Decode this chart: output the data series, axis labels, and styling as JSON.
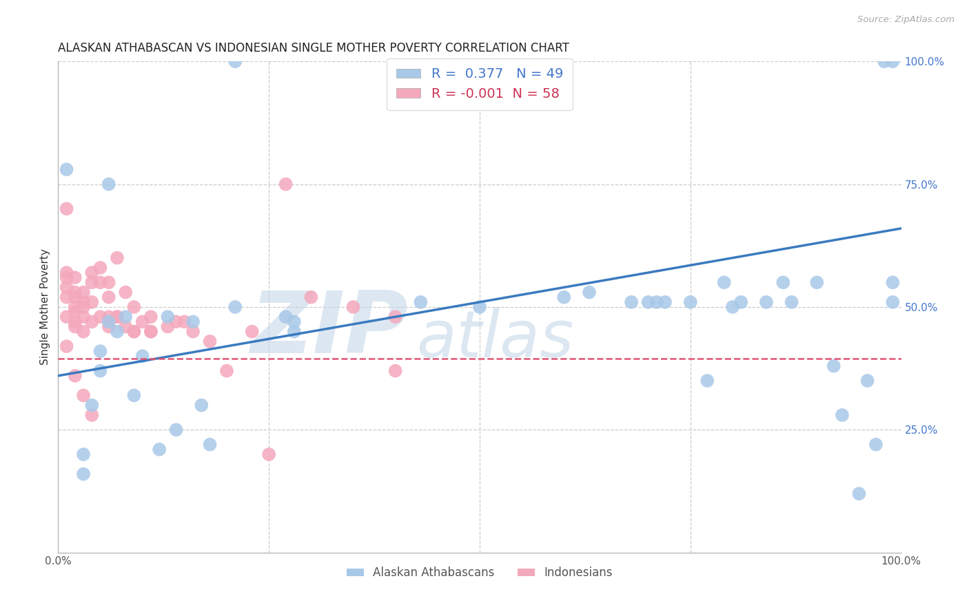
{
  "title": "ALASKAN ATHABASCAN VS INDONESIAN SINGLE MOTHER POVERTY CORRELATION CHART",
  "source": "Source: ZipAtlas.com",
  "ylabel": "Single Mother Poverty",
  "legend_blue_label": "Alaskan Athabascans",
  "legend_pink_label": "Indonesians",
  "blue_R": 0.377,
  "blue_N": 49,
  "pink_R": -0.001,
  "pink_N": 58,
  "blue_color": "#a8c8e8",
  "pink_color": "#f4a8bc",
  "blue_line_color": "#3a7abf",
  "pink_line_color": "#e05575",
  "blue_x": [
    0.21,
    0.01,
    0.04,
    0.05,
    0.06,
    0.07,
    0.08,
    0.09,
    0.1,
    0.12,
    0.13,
    0.14,
    0.16,
    0.17,
    0.18,
    0.21,
    0.27,
    0.28,
    0.28,
    0.43,
    0.5,
    0.6,
    0.63,
    0.68,
    0.7,
    0.71,
    0.72,
    0.75,
    0.77,
    0.79,
    0.8,
    0.81,
    0.84,
    0.86,
    0.87,
    0.9,
    0.92,
    0.93,
    0.95,
    0.96,
    0.97,
    0.98,
    0.99,
    0.99,
    0.99,
    0.03,
    0.03,
    0.05,
    0.06
  ],
  "blue_y": [
    1.0,
    0.78,
    0.3,
    0.41,
    0.47,
    0.45,
    0.48,
    0.32,
    0.4,
    0.21,
    0.48,
    0.25,
    0.47,
    0.3,
    0.22,
    0.5,
    0.48,
    0.47,
    0.45,
    0.51,
    0.5,
    0.52,
    0.53,
    0.51,
    0.51,
    0.51,
    0.51,
    0.51,
    0.35,
    0.55,
    0.5,
    0.51,
    0.51,
    0.55,
    0.51,
    0.55,
    0.38,
    0.28,
    0.12,
    0.35,
    0.22,
    1.0,
    0.51,
    1.0,
    0.55,
    0.2,
    0.16,
    0.37,
    0.75
  ],
  "pink_x": [
    0.01,
    0.01,
    0.01,
    0.01,
    0.01,
    0.01,
    0.02,
    0.02,
    0.02,
    0.02,
    0.02,
    0.02,
    0.02,
    0.03,
    0.03,
    0.03,
    0.03,
    0.03,
    0.04,
    0.04,
    0.04,
    0.04,
    0.05,
    0.05,
    0.05,
    0.06,
    0.06,
    0.06,
    0.07,
    0.07,
    0.08,
    0.08,
    0.09,
    0.09,
    0.1,
    0.11,
    0.11,
    0.13,
    0.14,
    0.15,
    0.16,
    0.18,
    0.2,
    0.23,
    0.27,
    0.3,
    0.35,
    0.01,
    0.02,
    0.03,
    0.04,
    0.06,
    0.07,
    0.09,
    0.11,
    0.25,
    0.4,
    0.4
  ],
  "pink_y": [
    0.7,
    0.57,
    0.56,
    0.54,
    0.52,
    0.48,
    0.56,
    0.53,
    0.52,
    0.5,
    0.49,
    0.47,
    0.46,
    0.53,
    0.51,
    0.5,
    0.48,
    0.45,
    0.57,
    0.55,
    0.51,
    0.47,
    0.58,
    0.55,
    0.48,
    0.55,
    0.52,
    0.48,
    0.6,
    0.48,
    0.53,
    0.46,
    0.5,
    0.45,
    0.47,
    0.48,
    0.45,
    0.46,
    0.47,
    0.47,
    0.45,
    0.43,
    0.37,
    0.45,
    0.75,
    0.52,
    0.5,
    0.42,
    0.36,
    0.32,
    0.28,
    0.46,
    0.48,
    0.45,
    0.45,
    0.2,
    0.48,
    0.37
  ],
  "blue_trend_x0": 0.0,
  "blue_trend_y0": 0.36,
  "blue_trend_x1": 1.0,
  "blue_trend_y1": 0.66,
  "pink_trend_y": 0.395,
  "xlim": [
    0,
    1
  ],
  "ylim": [
    0,
    1
  ],
  "grid_color": "#cccccc"
}
